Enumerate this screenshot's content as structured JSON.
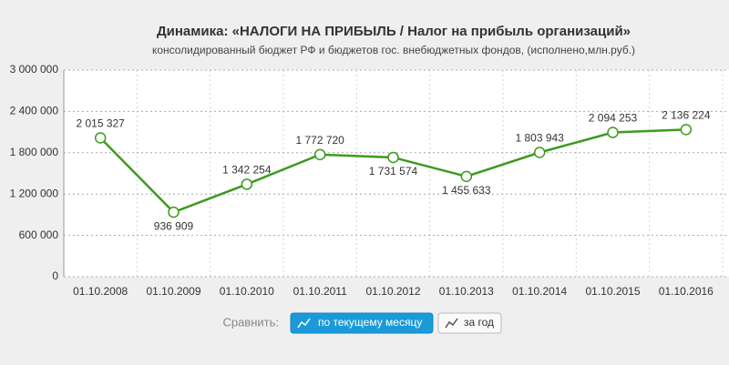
{
  "chart_data": {
    "type": "line",
    "title": "Динамика: «НАЛОГИ НА ПРИБЫЛЬ / Налог на прибыль организаций»",
    "subtitle": "консолидированный бюджет РФ и бюджетов гос. внебюджетных фондов, (исполнено,млн.руб.)",
    "categories": [
      "01.10.2008",
      "01.10.2009",
      "01.10.2010",
      "01.10.2011",
      "01.10.2012",
      "01.10.2013",
      "01.10.2014",
      "01.10.2015",
      "01.10.2016"
    ],
    "values": [
      2015327,
      936909,
      1342254,
      1772720,
      1731574,
      1455633,
      1803943,
      2094253,
      2136224
    ],
    "value_labels": [
      "2 015 327",
      "936 909",
      "1 342 254",
      "1 772 720",
      "1 731 574",
      "1 455 633",
      "1 803 943",
      "2 094 253",
      "2 136 224"
    ],
    "color": "#3c9a1e",
    "ylim": [
      0,
      3000000
    ],
    "yticks": [
      0,
      {
        "value": 600000,
        "label": "600 000"
      },
      {
        "value": 1200000,
        "label": "1 200 000"
      },
      {
        "value": 1800000,
        "label": "1 800 000"
      },
      {
        "value": 2400000,
        "label": "2 400 000"
      },
      {
        "value": 3000000,
        "label": "3 000 000"
      }
    ],
    "grid": true
  },
  "controls": {
    "label": "Сравнить:",
    "buttons": [
      "по текущему месяцу",
      "за год"
    ]
  }
}
